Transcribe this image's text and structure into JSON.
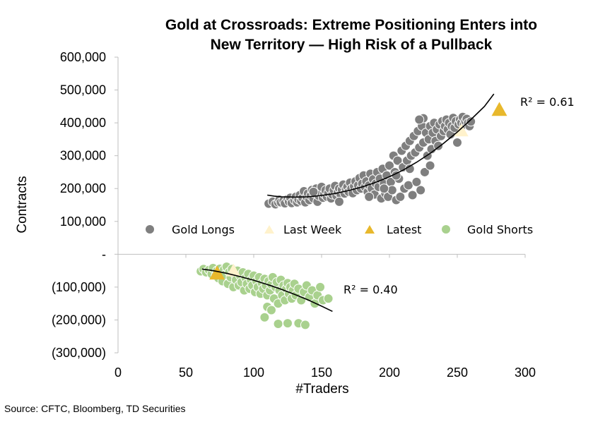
{
  "chart_data": {
    "type": "scatter",
    "title_lines": [
      "Gold at Crossroads: Extreme Positioning Enters into",
      "New Territory — High Risk of a Pullback"
    ],
    "xlabel": "#Traders",
    "ylabel": "Contracts",
    "xlim": [
      0,
      300
    ],
    "ylim": [
      -300000,
      600000
    ],
    "x_ticks": [
      "0",
      "50",
      "100",
      "150",
      "200",
      "250",
      "300"
    ],
    "y_ticks": [
      "600,000",
      "500,000",
      "400,000",
      "300,000",
      "200,000",
      "100,000",
      "-",
      "(100,000)",
      "(200,000)",
      "(300,000)"
    ],
    "grid": false,
    "legend_position": "inside-center",
    "annotations": {
      "longs_r2": "R² = 0.61",
      "shorts_r2": "R² = 0.40"
    },
    "source": "Source: CFTC, Bloomberg, TD Securities",
    "series": [
      {
        "name": "Gold Longs",
        "marker": "circle",
        "color": "#7f7f7f",
        "trendline": [
          [
            110,
            180000
          ],
          [
            115,
            177000
          ],
          [
            120,
            175000
          ],
          [
            130,
            174000
          ],
          [
            140,
            175000
          ],
          [
            150,
            179000
          ],
          [
            160,
            185000
          ],
          [
            170,
            194000
          ],
          [
            180,
            205000
          ],
          [
            190,
            219000
          ],
          [
            200,
            236000
          ],
          [
            210,
            256000
          ],
          [
            220,
            280000
          ],
          [
            230,
            307000
          ],
          [
            240,
            338000
          ],
          [
            250,
            372000
          ],
          [
            260,
            410000
          ],
          [
            270,
            450000
          ],
          [
            277,
            488000
          ]
        ],
        "points": [
          [
            111,
            154000
          ],
          [
            114,
            160000
          ],
          [
            116,
            152000
          ],
          [
            118,
            158000
          ],
          [
            119,
            166000
          ],
          [
            120,
            158000
          ],
          [
            122,
            163000
          ],
          [
            123,
            155000
          ],
          [
            125,
            168000
          ],
          [
            126,
            160000
          ],
          [
            127,
            172000
          ],
          [
            128,
            156000
          ],
          [
            130,
            165000
          ],
          [
            131,
            175000
          ],
          [
            132,
            158000
          ],
          [
            133,
            167000
          ],
          [
            134,
            180000
          ],
          [
            135,
            162000
          ],
          [
            136,
            172000
          ],
          [
            137,
            192000
          ],
          [
            138,
            158000
          ],
          [
            139,
            175000
          ],
          [
            140,
            185000
          ],
          [
            141,
            165000
          ],
          [
            142,
            178000
          ],
          [
            143,
            196000
          ],
          [
            144,
            170000
          ],
          [
            145,
            185000
          ],
          [
            146,
            200000
          ],
          [
            147,
            160000
          ],
          [
            148,
            178000
          ],
          [
            149,
            190000
          ],
          [
            150,
            205000
          ],
          [
            151,
            172000
          ],
          [
            152,
            183000
          ],
          [
            153,
            195000
          ],
          [
            154,
            175000
          ],
          [
            155,
            187000
          ],
          [
            156,
            200000
          ],
          [
            157,
            170000
          ],
          [
            158,
            182000
          ],
          [
            159,
            195000
          ],
          [
            160,
            208000
          ],
          [
            161,
            178000
          ],
          [
            162,
            190000
          ],
          [
            163,
            200000
          ],
          [
            164,
            183000
          ],
          [
            165,
            197000
          ],
          [
            166,
            212000
          ],
          [
            167,
            185000
          ],
          [
            168,
            198000
          ],
          [
            169,
            205000
          ],
          [
            170,
            190000
          ],
          [
            171,
            218000
          ],
          [
            172,
            200000
          ],
          [
            173,
            186000
          ],
          [
            174,
            207000
          ],
          [
            175,
            222000
          ],
          [
            176,
            195000
          ],
          [
            177,
            210000
          ],
          [
            178,
            232000
          ],
          [
            179,
            200000
          ],
          [
            180,
            215000
          ],
          [
            181,
            240000
          ],
          [
            182,
            205000
          ],
          [
            183,
            222000
          ],
          [
            184,
            190000
          ],
          [
            185,
            210000
          ],
          [
            186,
            245000
          ],
          [
            187,
            200000
          ],
          [
            188,
            228000
          ],
          [
            189,
            182000
          ],
          [
            190,
            215000
          ],
          [
            191,
            250000
          ],
          [
            192,
            205000
          ],
          [
            193,
            230000
          ],
          [
            194,
            170000
          ],
          [
            195,
            260000
          ],
          [
            196,
            215000
          ],
          [
            197,
            185000
          ],
          [
            198,
            240000
          ],
          [
            199,
            175000
          ],
          [
            200,
            270000
          ],
          [
            201,
            220000
          ],
          [
            202,
            195000
          ],
          [
            203,
            300000
          ],
          [
            204,
            250000
          ],
          [
            205,
            165000
          ],
          [
            206,
            285000
          ],
          [
            207,
            230000
          ],
          [
            208,
            175000
          ],
          [
            209,
            315000
          ],
          [
            210,
            265000
          ],
          [
            211,
            200000
          ],
          [
            212,
            330000
          ],
          [
            213,
            285000
          ],
          [
            214,
            210000
          ],
          [
            215,
            345000
          ],
          [
            216,
            300000
          ],
          [
            217,
            180000
          ],
          [
            218,
            360000
          ],
          [
            219,
            310000
          ],
          [
            220,
            220000
          ],
          [
            221,
            375000
          ],
          [
            222,
            325000
          ],
          [
            223,
            195000
          ],
          [
            224,
            390000
          ],
          [
            225,
            340000
          ],
          [
            226,
            250000
          ],
          [
            227,
            370000
          ],
          [
            228,
            300000
          ],
          [
            229,
            350000
          ],
          [
            230,
            390000
          ],
          [
            231,
            320000
          ],
          [
            232,
            370000
          ],
          [
            233,
            400000
          ],
          [
            234,
            345000
          ],
          [
            235,
            380000
          ],
          [
            236,
            330000
          ],
          [
            237,
            395000
          ],
          [
            238,
            360000
          ],
          [
            239,
            405000
          ],
          [
            240,
            375000
          ],
          [
            241,
            390000
          ],
          [
            242,
            410000
          ],
          [
            243,
            380000
          ],
          [
            244,
            400000
          ],
          [
            245,
            365000
          ],
          [
            246,
            390000
          ],
          [
            247,
            415000
          ],
          [
            248,
            385000
          ],
          [
            249,
            405000
          ],
          [
            250,
            340000
          ],
          [
            251,
            395000
          ],
          [
            252,
            410000
          ],
          [
            253,
            400000
          ],
          [
            254,
            418000
          ],
          [
            255,
            395000
          ],
          [
            256,
            405000
          ],
          [
            257,
            412000
          ],
          [
            258,
            400000
          ],
          [
            259,
            390000
          ],
          [
            260,
            404000
          ],
          [
            225,
            414000
          ],
          [
            230,
            270000
          ],
          [
            215,
            260000
          ],
          [
            196,
            200000
          ],
          [
            185,
            175000
          ],
          [
            163,
            160000
          ],
          [
            144,
            190000
          ],
          [
            205,
            240000
          ],
          [
            222,
            410000
          ]
        ]
      },
      {
        "name": "Last Week",
        "marker": "triangle",
        "color": "#fff2cc",
        "points": [
          [
            253,
            376000
          ],
          [
            85,
            -50000
          ]
        ]
      },
      {
        "name": "Latest",
        "marker": "triangle",
        "color": "#e8b82c",
        "points": [
          [
            281,
            440000
          ],
          [
            73,
            -58000
          ]
        ]
      },
      {
        "name": "Gold Shorts",
        "marker": "circle",
        "color": "#a9d18e",
        "trendline": [
          [
            62,
            -45000
          ],
          [
            70,
            -50000
          ],
          [
            80,
            -58000
          ],
          [
            90,
            -68000
          ],
          [
            100,
            -79000
          ],
          [
            110,
            -92000
          ],
          [
            120,
            -106000
          ],
          [
            130,
            -122000
          ],
          [
            140,
            -139000
          ],
          [
            150,
            -158000
          ],
          [
            158,
            -174000
          ]
        ],
        "points": [
          [
            61,
            -52000
          ],
          [
            63,
            -45000
          ],
          [
            65,
            -55000
          ],
          [
            67,
            -48000
          ],
          [
            69,
            -60000
          ],
          [
            70,
            -42000
          ],
          [
            72,
            -66000
          ],
          [
            73,
            -50000
          ],
          [
            74,
            -73000
          ],
          [
            75,
            -44000
          ],
          [
            76,
            -58000
          ],
          [
            77,
            -82000
          ],
          [
            78,
            -47000
          ],
          [
            79,
            -62000
          ],
          [
            80,
            -38000
          ],
          [
            81,
            -90000
          ],
          [
            82,
            -54000
          ],
          [
            83,
            -70000
          ],
          [
            84,
            -45000
          ],
          [
            85,
            -100000
          ],
          [
            86,
            -60000
          ],
          [
            87,
            -78000
          ],
          [
            88,
            -50000
          ],
          [
            89,
            -95000
          ],
          [
            90,
            -65000
          ],
          [
            91,
            -85000
          ],
          [
            92,
            -55000
          ],
          [
            93,
            -110000
          ],
          [
            94,
            -72000
          ],
          [
            95,
            -90000
          ],
          [
            96,
            -60000
          ],
          [
            97,
            -105000
          ],
          [
            98,
            -78000
          ],
          [
            99,
            -95000
          ],
          [
            100,
            -65000
          ],
          [
            101,
            -115000
          ],
          [
            102,
            -82000
          ],
          [
            103,
            -100000
          ],
          [
            104,
            -70000
          ],
          [
            105,
            -120000
          ],
          [
            106,
            -88000
          ],
          [
            107,
            -105000
          ],
          [
            108,
            -75000
          ],
          [
            109,
            -95000
          ],
          [
            110,
            -125000
          ],
          [
            111,
            -82000
          ],
          [
            112,
            -110000
          ],
          [
            113,
            -92000
          ],
          [
            114,
            -70000
          ],
          [
            115,
            -135000
          ],
          [
            116,
            -100000
          ],
          [
            117,
            -85000
          ],
          [
            118,
            -150000
          ],
          [
            119,
            -110000
          ],
          [
            120,
            -78000
          ],
          [
            121,
            -125000
          ],
          [
            122,
            -95000
          ],
          [
            123,
            -140000
          ],
          [
            124,
            -105000
          ],
          [
            125,
            -88000
          ],
          [
            126,
            -120000
          ],
          [
            127,
            -100000
          ],
          [
            128,
            -135000
          ],
          [
            129,
            -110000
          ],
          [
            130,
            -90000
          ],
          [
            131,
            -125000
          ],
          [
            133,
            -105000
          ],
          [
            135,
            -140000
          ],
          [
            137,
            -115000
          ],
          [
            139,
            -95000
          ],
          [
            141,
            -130000
          ],
          [
            143,
            -110000
          ],
          [
            145,
            -150000
          ],
          [
            147,
            -125000
          ],
          [
            149,
            -100000
          ],
          [
            151,
            -140000
          ],
          [
            155,
            -135000
          ],
          [
            108,
            -192000
          ],
          [
            110,
            -160000
          ],
          [
            118,
            -212000
          ],
          [
            125,
            -210000
          ],
          [
            133,
            -210000
          ],
          [
            138,
            -215000
          ],
          [
            113,
            -170000
          ]
        ]
      }
    ]
  }
}
